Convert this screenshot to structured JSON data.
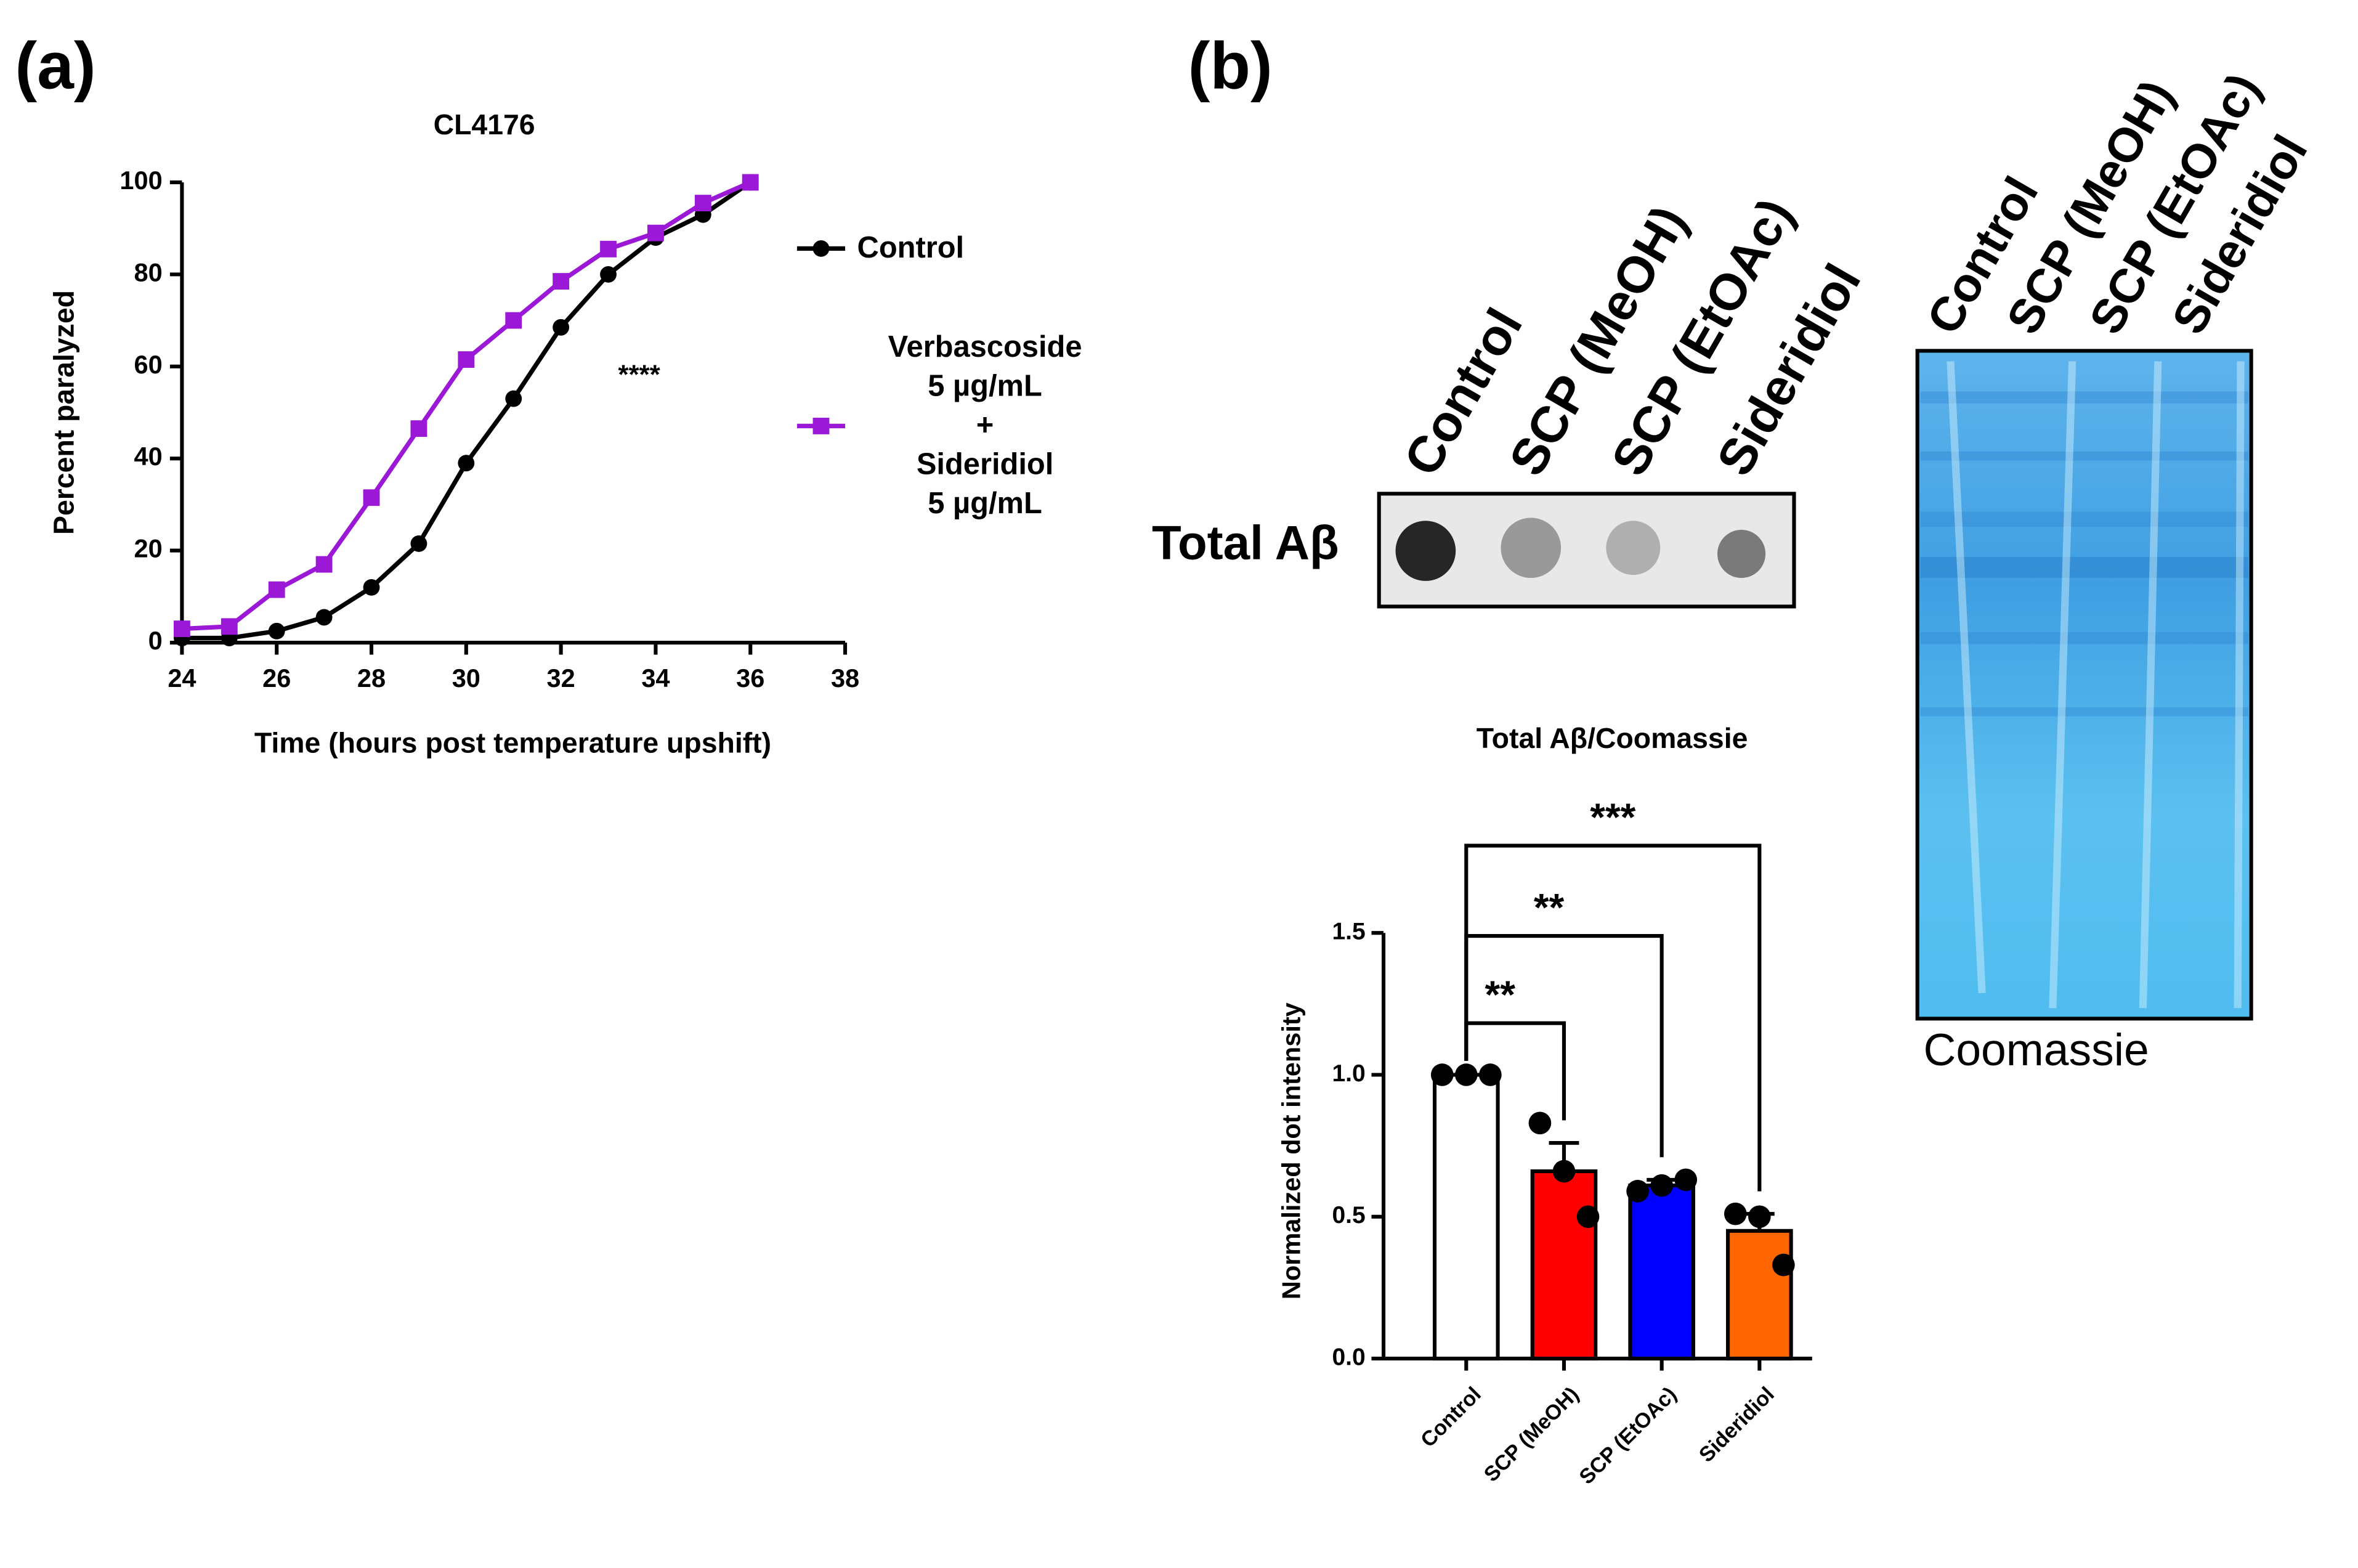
{
  "panels": [
    "(a)",
    "(b)"
  ],
  "dot_blot": {
    "row_label": "Total Aβ",
    "lanes": [
      "Control",
      "SCP (MeOH)",
      "SCP (EtOAc)",
      "Sideridiol"
    ]
  },
  "coomassie": {
    "label": "Coomassie",
    "lanes": [
      "Control",
      "SCP (MeOH)",
      "SCP (EtOAc)",
      "Sideridiol"
    ]
  },
  "chart_data": [
    {
      "type": "line",
      "title": "CL4176",
      "x_label": "Time (hours post temperature upshift)",
      "y_label": "Percent paralyzed",
      "x": [
        24,
        25,
        26,
        27,
        28,
        29,
        30,
        31,
        32,
        33,
        34,
        35,
        36
      ],
      "series": [
        {
          "name": "Control",
          "color": "#000000",
          "marker": "circle",
          "values": [
            1,
            1,
            2.5,
            5.5,
            12,
            21.5,
            39,
            53,
            68.5,
            80,
            88,
            93,
            100
          ]
        },
        {
          "name": "Verbascoside\n5 µg/mL\n+\nSideridiol\n5 µg/mL",
          "color": "#9b19d6",
          "marker": "square",
          "values": [
            3,
            3.5,
            11.5,
            17,
            31.5,
            46.5,
            61.5,
            70,
            78.5,
            85.5,
            89,
            95.5,
            100
          ]
        }
      ],
      "xlim": [
        24,
        38
      ],
      "xticks": [
        24,
        26,
        28,
        30,
        32,
        34,
        36,
        38
      ],
      "ylim": [
        0,
        100
      ],
      "yticks": [
        0,
        20,
        40,
        60,
        80,
        100
      ],
      "annotations": [
        "****"
      ],
      "legend": "right"
    },
    {
      "type": "bar",
      "title": "Total Aβ/Coomassie",
      "y_label": "Normalized dot intensity",
      "categories": [
        "Control",
        "SCP (MeOH)",
        "SCP (EtOAc)",
        "Sideridiol"
      ],
      "values": [
        1.0,
        0.66,
        0.61,
        0.45
      ],
      "errors": [
        0,
        0.1,
        0.02,
        0.06
      ],
      "colors": [
        "#ffffff",
        "#ff0000",
        "#0000ff",
        "#ff6600"
      ],
      "points": [
        [
          1,
          1,
          1
        ],
        [
          0.83,
          0.66,
          0.5
        ],
        [
          0.59,
          0.61,
          0.63
        ],
        [
          0.51,
          0.5,
          0.33
        ]
      ],
      "ylim": [
        0,
        1.5
      ],
      "yticks": [
        {
          "value": 0,
          "label": "0.0"
        },
        {
          "value": 0.5,
          "label": "0.5"
        },
        {
          "value": 1,
          "label": "1.0"
        },
        1.5
      ],
      "annotations": [
        "**",
        "**",
        "***"
      ]
    }
  ]
}
